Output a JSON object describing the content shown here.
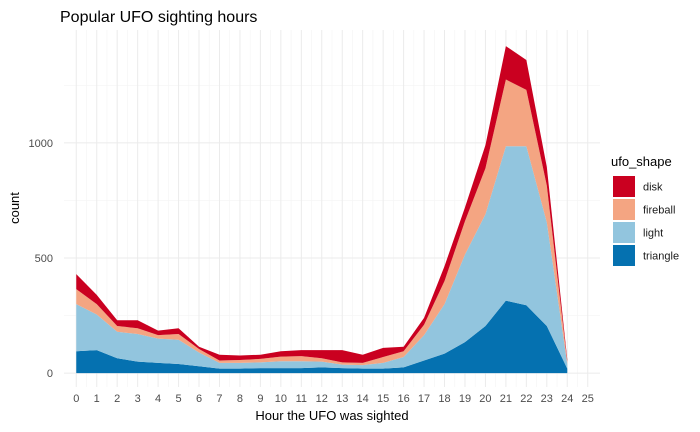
{
  "chart_data": {
    "type": "area",
    "stacked": true,
    "title": "Popular UFO sighting hours",
    "xlabel": "Hour the UFO was sighted",
    "ylabel": "count",
    "x": [
      0,
      1,
      2,
      3,
      4,
      5,
      6,
      7,
      8,
      9,
      10,
      11,
      12,
      13,
      14,
      15,
      16,
      17,
      18,
      19,
      20,
      21,
      22,
      23,
      24
    ],
    "x_ticks": [
      "0",
      "1",
      "2",
      "3",
      "4",
      "5",
      "6",
      "7",
      "8",
      "9",
      "10",
      "11",
      "12",
      "13",
      "14",
      "15",
      "16",
      "17",
      "18",
      "19",
      "20",
      "21",
      "22",
      "23",
      "24",
      "25"
    ],
    "xlim": [
      -0.6,
      25.6
    ],
    "ylim": [
      -60,
      1490
    ],
    "y_ticks": [
      0,
      500,
      1000
    ],
    "y_tick_labels": [
      "0",
      "500",
      "1000"
    ],
    "grid": true,
    "legend": {
      "title": "ufo_shape",
      "position": "right",
      "entries": [
        "disk",
        "fireball",
        "light",
        "triangle"
      ]
    },
    "series": [
      {
        "name": "triangle",
        "color": "#0571b0",
        "values": [
          95,
          100,
          65,
          50,
          45,
          40,
          30,
          20,
          20,
          22,
          22,
          22,
          25,
          22,
          20,
          20,
          25,
          55,
          85,
          135,
          205,
          315,
          295,
          205,
          20
        ]
      },
      {
        "name": "light",
        "color": "#92c5de",
        "values": [
          205,
          155,
          115,
          120,
          105,
          105,
          60,
          25,
          25,
          25,
          30,
          30,
          25,
          15,
          15,
          25,
          45,
          110,
          215,
          380,
          485,
          670,
          690,
          450,
          20
        ]
      },
      {
        "name": "fireball",
        "color": "#f4a582",
        "values": [
          65,
          45,
          25,
          25,
          15,
          25,
          15,
          10,
          12,
          15,
          20,
          22,
          15,
          10,
          10,
          25,
          25,
          45,
          100,
          145,
          200,
          290,
          245,
          160,
          10
        ]
      },
      {
        "name": "disk",
        "color": "#ca0020",
        "values": [
          65,
          40,
          25,
          35,
          20,
          25,
          10,
          25,
          20,
          18,
          23,
          26,
          35,
          53,
          35,
          40,
          20,
          30,
          65,
          60,
          100,
          145,
          130,
          80,
          10
        ]
      }
    ]
  }
}
